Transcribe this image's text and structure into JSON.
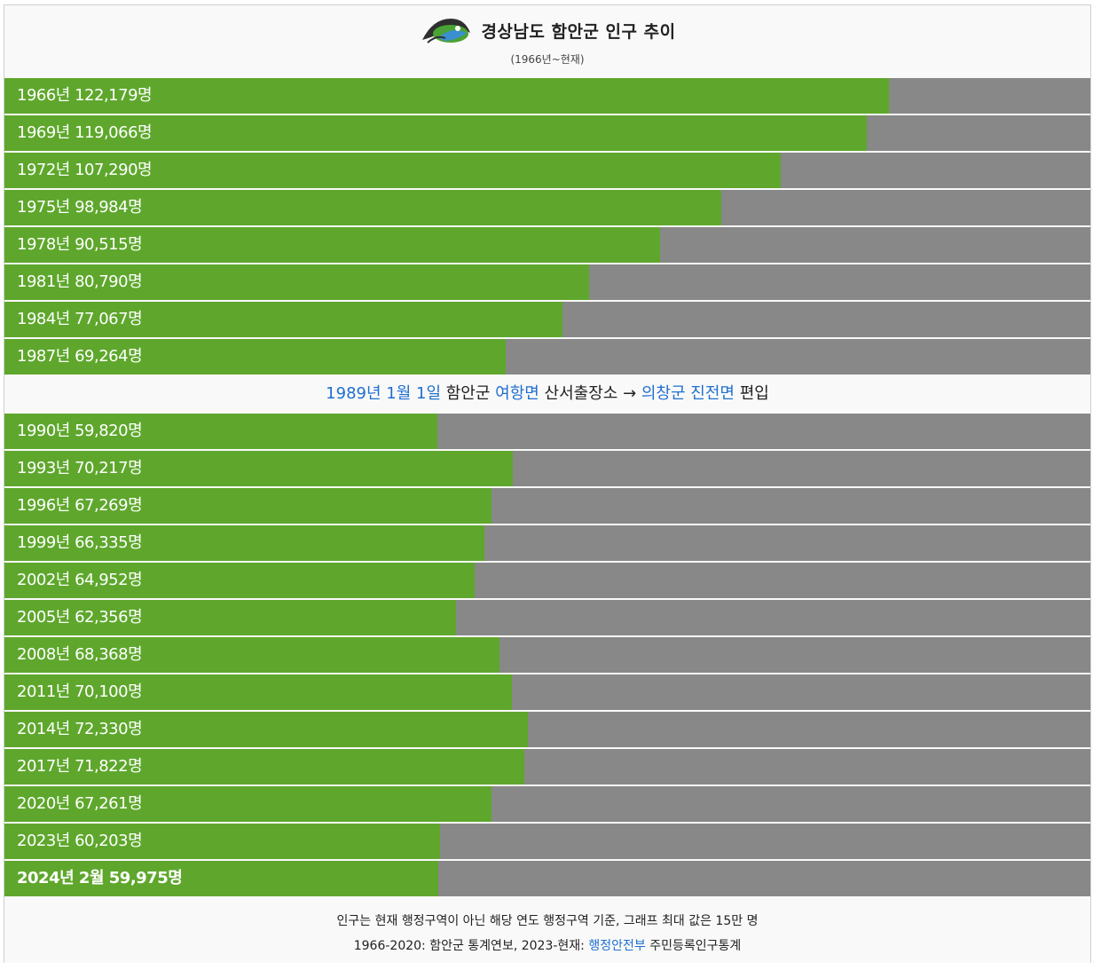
{
  "header": {
    "title": "경상남도 함안군 인구 추이",
    "subtitle": "(1966년~현재)",
    "logo_icon": "hamann-county-logo-icon"
  },
  "colors": {
    "bar_fill": "#5ea72c",
    "bar_rest": "#888888",
    "link": "#1f6fd0"
  },
  "chart_data": {
    "type": "bar",
    "orientation": "horizontal",
    "title": "경상남도 함안군 인구 추이",
    "subtitle": "(1966년~현재)",
    "xlim": [
      0,
      150000
    ],
    "categories": [
      "1966년",
      "1969년",
      "1972년",
      "1975년",
      "1978년",
      "1981년",
      "1984년",
      "1987년",
      "1990년",
      "1993년",
      "1996년",
      "1999년",
      "2002년",
      "2005년",
      "2008년",
      "2011년",
      "2014년",
      "2017년",
      "2020년",
      "2023년",
      "2024년 2월"
    ],
    "values": [
      122179,
      119066,
      107290,
      98984,
      90515,
      80790,
      77067,
      69264,
      59820,
      70217,
      67269,
      66335,
      64952,
      62356,
      68368,
      70100,
      72330,
      71822,
      67261,
      60203,
      59975
    ],
    "labels": [
      "1966년 122,179명",
      "1969년 119,066명",
      "1972년 107,290명",
      "1975년 98,984명",
      "1978년 90,515명",
      "1981년 80,790명",
      "1984년 77,067명",
      "1987년 69,264명",
      "1990년 59,820명",
      "1993년 70,217명",
      "1996년 67,269명",
      "1999년 66,335명",
      "2002년 64,952명",
      "2005년 62,356명",
      "2008년 68,368명",
      "2011년 70,100명",
      "2014년 72,330명",
      "2017년 71,822명",
      "2020년 67,261명",
      "2023년 60,203명",
      "2024년 2월 59,975명"
    ],
    "annotation": {
      "after_index": 7,
      "parts": [
        {
          "text": "1989년 1월 1일",
          "style": "blue"
        },
        {
          "text": " 함안군 ",
          "style": "dark"
        },
        {
          "text": "여항면",
          "style": "blue"
        },
        {
          "text": " 산서출장소 → ",
          "style": "dark"
        },
        {
          "text": "의창군 진전면",
          "style": "blue"
        },
        {
          "text": " 편입",
          "style": "dark"
        }
      ]
    }
  },
  "footer": {
    "line1": "인구는 현재 행정구역이 아닌 해당 연도 행정구역 기준, 그래프 최대 값은 15만 명",
    "line2_prefix": "1966-2020: 함안군 통계연보, 2023-현재: ",
    "line2_link": "행정안전부",
    "line2_suffix": " 주민등록인구통계"
  }
}
